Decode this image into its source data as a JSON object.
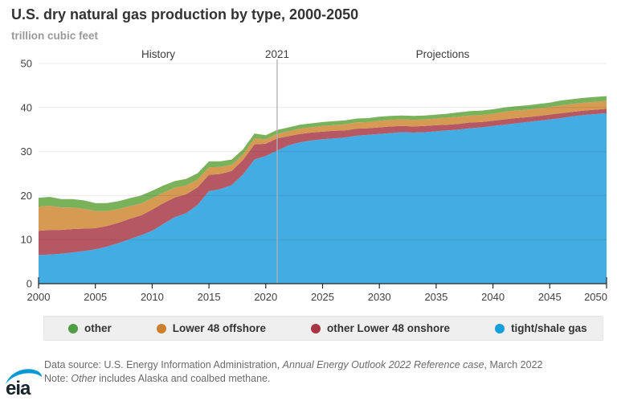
{
  "header": {
    "title": "U.S. dry natural gas production by type, 2000-2050",
    "subtitle": "trillion cubic feet"
  },
  "annotations": {
    "history_label": "History",
    "divider_label": "2021",
    "projections_label": "Projections",
    "divider_year": 2021
  },
  "legend": {
    "items": [
      {
        "label": "other",
        "color": "#4f9d45"
      },
      {
        "label": "Lower 48 offshore",
        "color": "#cc7f2e"
      },
      {
        "label": "other Lower 48 onshore",
        "color": "#a93443"
      },
      {
        "label": "tight/shale gas",
        "color": "#149fdc"
      }
    ]
  },
  "chart_data": {
    "type": "area",
    "stacked": true,
    "title": "U.S. dry natural gas production by type, 2000-2050",
    "ylabel": "trillion cubic feet",
    "xlabel": "",
    "ylim": [
      0,
      50
    ],
    "yticks": [
      0,
      10,
      20,
      30,
      40,
      50
    ],
    "xticks": [
      2000,
      2005,
      2010,
      2015,
      2020,
      2025,
      2030,
      2035,
      2040,
      2045,
      2050
    ],
    "grid": true,
    "legend_position": "bottom",
    "divider_x": 2021,
    "x": [
      2000,
      2001,
      2002,
      2003,
      2004,
      2005,
      2006,
      2007,
      2008,
      2009,
      2010,
      2011,
      2012,
      2013,
      2014,
      2015,
      2016,
      2017,
      2018,
      2019,
      2020,
      2021,
      2022,
      2023,
      2024,
      2025,
      2026,
      2027,
      2028,
      2029,
      2030,
      2031,
      2032,
      2033,
      2034,
      2035,
      2036,
      2037,
      2038,
      2039,
      2040,
      2041,
      2042,
      2043,
      2044,
      2045,
      2046,
      2047,
      2048,
      2049,
      2050
    ],
    "series": [
      {
        "name": "tight/shale gas",
        "key": "tight-shale-gas",
        "area_color": "#43ace2",
        "values": [
          6.5,
          6.6,
          6.8,
          7.1,
          7.4,
          7.8,
          8.4,
          9.2,
          10.1,
          11.0,
          12.0,
          13.6,
          15.1,
          16.0,
          17.9,
          21.0,
          21.5,
          22.4,
          24.8,
          28.2,
          29.0,
          30.2,
          31.4,
          32.1,
          32.5,
          32.8,
          33.0,
          33.2,
          33.6,
          33.8,
          34.0,
          34.2,
          34.4,
          34.3,
          34.4,
          34.6,
          34.8,
          35.0,
          35.3,
          35.5,
          35.8,
          36.1,
          36.4,
          36.7,
          37.0,
          37.3,
          37.6,
          38.0,
          38.3,
          38.5,
          38.7
        ]
      },
      {
        "name": "other Lower 48 onshore",
        "key": "other-lower-48-onshore",
        "area_color": "#b65863",
        "values": [
          5.5,
          5.6,
          5.4,
          5.3,
          5.1,
          4.8,
          4.7,
          4.6,
          4.6,
          4.5,
          4.8,
          4.7,
          4.5,
          4.3,
          4.0,
          3.7,
          3.4,
          3.2,
          3.3,
          3.4,
          2.8,
          2.8,
          2.1,
          1.9,
          1.8,
          1.7,
          1.7,
          1.6,
          1.6,
          1.5,
          1.5,
          1.5,
          1.4,
          1.4,
          1.4,
          1.4,
          1.3,
          1.3,
          1.3,
          1.2,
          1.2,
          1.2,
          1.2,
          1.1,
          1.1,
          1.1,
          1.1,
          1.0,
          1.0,
          1.0,
          1.0
        ]
      },
      {
        "name": "Lower 48 offshore",
        "key": "lower-48-offshore",
        "area_color": "#d69a52",
        "values": [
          5.5,
          5.5,
          5.1,
          4.9,
          4.5,
          3.9,
          3.4,
          3.1,
          2.9,
          2.7,
          2.6,
          2.4,
          2.2,
          2.0,
          1.8,
          1.7,
          1.6,
          1.4,
          1.3,
          1.4,
          1.0,
          1.0,
          1.1,
          1.2,
          1.2,
          1.3,
          1.3,
          1.4,
          1.4,
          1.4,
          1.5,
          1.5,
          1.5,
          1.5,
          1.5,
          1.5,
          1.6,
          1.6,
          1.6,
          1.6,
          1.6,
          1.7,
          1.7,
          1.7,
          1.7,
          1.7,
          1.8,
          1.8,
          1.8,
          1.8,
          1.8
        ]
      },
      {
        "name": "other",
        "key": "other",
        "area_color": "#79b25b",
        "values": [
          2.0,
          2.0,
          1.9,
          1.9,
          1.9,
          1.8,
          1.8,
          1.8,
          1.8,
          1.8,
          1.7,
          1.6,
          1.5,
          1.5,
          1.4,
          1.4,
          1.3,
          1.2,
          1.1,
          1.1,
          0.9,
          0.9,
          0.9,
          0.9,
          0.9,
          0.9,
          0.9,
          0.9,
          0.9,
          0.9,
          0.9,
          0.9,
          0.9,
          0.9,
          0.9,
          0.9,
          0.9,
          1.0,
          1.0,
          1.0,
          1.0,
          1.0,
          1.0,
          1.0,
          1.0,
          1.0,
          1.1,
          1.1,
          1.1,
          1.1,
          1.1
        ]
      }
    ]
  },
  "footer": {
    "source_prefix": "Data source: U.S. Energy Information Administration, ",
    "source_italic": "Annual Energy Outlook 2022 Reference case",
    "source_suffix": ", March 2022",
    "note_prefix": "Note: ",
    "note_italic": "Other",
    "note_suffix": " includes Alaska and coalbed methane.",
    "logo_text": "eia"
  },
  "colors": {
    "title_text": "#333333",
    "subtitle_text": "#999999",
    "axis_text": "#404040",
    "axis_line": "#262626",
    "gridline": "rgba(0,0,0,0.08)",
    "divider_line": "#b0b0b0",
    "legend_background": "#efefef",
    "footer_text": "#6a6a6a",
    "logo_blue": "#0898d4"
  }
}
